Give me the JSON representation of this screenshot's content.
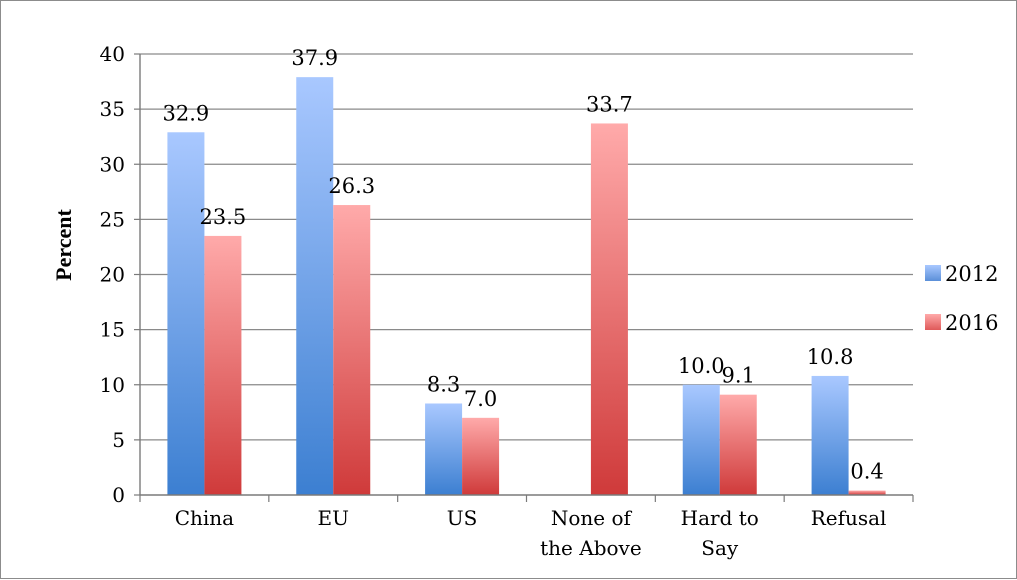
{
  "chart_data": {
    "type": "bar",
    "title": "",
    "xlabel": "",
    "ylabel": "Percent",
    "ylim": [
      0,
      40
    ],
    "yticks": [
      0,
      5,
      10,
      15,
      20,
      25,
      30,
      35,
      40
    ],
    "grid": true,
    "legend_position": "right",
    "categories": [
      [
        "China"
      ],
      [
        "EU"
      ],
      [
        "US"
      ],
      [
        "None of",
        "the Above"
      ],
      [
        "Hard to",
        "Say"
      ],
      [
        "Refusal"
      ]
    ],
    "series": [
      {
        "name": "2012",
        "values": [
          32.9,
          37.9,
          8.3,
          null,
          10.0,
          10.8
        ],
        "labels": [
          "32.9",
          "37.9",
          "8.3",
          "",
          "10.0",
          "10.8"
        ],
        "color_top": "#a9c8ff",
        "color_bottom": "#3c7fd1",
        "legend_color": "#5b8fd8"
      },
      {
        "name": "2016",
        "values": [
          23.5,
          26.3,
          7.0,
          33.7,
          9.1,
          0.4
        ],
        "labels": [
          "23.5",
          "26.3",
          "7.0",
          "33.7",
          "9.1",
          "0.4"
        ],
        "color_top": "#ffaaaa",
        "color_bottom": "#cf3a3a",
        "legend_color": "#df5a5a"
      }
    ]
  }
}
